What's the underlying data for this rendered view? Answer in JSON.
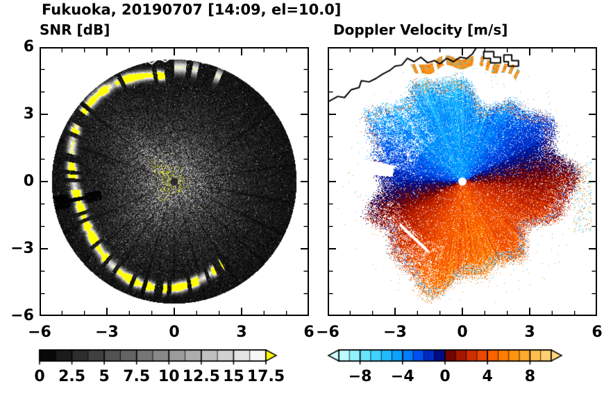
{
  "figure": {
    "title": "Fukuoka, 20190707 [14:09, el=10.0]",
    "site": "Fukuoka",
    "date": "20190707",
    "time": "14:09",
    "elevation_deg": "10.0",
    "background": "#ffffff",
    "axis_color": "#000000"
  },
  "chart_data": [
    {
      "type": "heatmap",
      "title": "SNR [dB]",
      "xlim": [
        -6,
        6
      ],
      "ylim": [
        -6,
        6
      ],
      "xticks": [
        -6,
        -3,
        0,
        3,
        6
      ],
      "xtick_labels": [
        "−6",
        "−3",
        "0",
        "3",
        "6"
      ],
      "yticks": [
        -6,
        -3,
        0,
        3,
        6
      ],
      "ytick_labels": [
        "−6",
        "−3",
        "0",
        "3",
        "6"
      ],
      "minor_tick_step": 1,
      "units": "dB",
      "description": "Circular PPI scan of signal-to-noise ratio. Disk radius about 5.45 units, brightest near the center and fading to near-black at the rim, with speckle noise, thin dark shadow spokes radiating from the center, and a bright saturated (white/yellow) coastal echo arc along the western and southern rim. White coastline drawn along the top.",
      "colorbar": {
        "min": 0,
        "max": 17.5,
        "ticks": [
          0,
          2.5,
          5,
          7.5,
          10,
          12.5,
          15,
          17.5
        ],
        "tick_labels": [
          "0",
          "2.5",
          "5",
          "7.5",
          "10",
          "12.5",
          "15",
          "17.5"
        ],
        "segment_step": 1.25,
        "colormap": "grayscale",
        "color_min": "#000000",
        "color_max": "#ffffff",
        "over_color": "#ffff00"
      },
      "field": {
        "kind": "radial-scan",
        "center": [
          0,
          0
        ],
        "scan_radius": 5.45,
        "peak_snr_center": 11,
        "radial_falloff": 1.9,
        "coastal_arc_azimuth_deg": [
          95,
          300
        ],
        "coastal_arc_radius": 4.62,
        "coastal_arc_snr": 25,
        "top_arc_azimuth_deg": [
          60,
          95
        ],
        "top_arc_radius": 5.1,
        "shadow_spokes_deg": [
          8,
          -10,
          -26,
          -42,
          -58,
          -75,
          -90,
          -106,
          -122,
          -138,
          -155,
          160,
          140,
          35
        ],
        "blocked_wedge_deg": [
          187,
          194
        ]
      },
      "overlays": {
        "coastline_color": "#ffffff",
        "center_dot_color": "#2a2a2a"
      }
    },
    {
      "type": "heatmap",
      "title": "Doppler Velocity [m/s]",
      "xlim": [
        -6,
        6
      ],
      "ylim": [
        -6,
        6
      ],
      "xticks": [
        -6,
        -3,
        0,
        3,
        6
      ],
      "xtick_labels": [
        "−6",
        "−3",
        "0",
        "3",
        "6"
      ],
      "yticks": [
        -6,
        -3,
        0,
        3,
        6
      ],
      "ytick_labels": [],
      "minor_tick_step": 1,
      "units": "m/s",
      "description": "Doppler velocity dipole: negative (blue/cyan, toward) velocities over the northern/north-western half, positive (red/orange, away) velocities over the southern/south-eastern half, ragged speckled coverage edge, a red echo arc along the northern coastline, scattered red/blue specks near the eastern rim, a thin white data-gap slash in the south-west sector, and a white dot at the scan center. Black coastline drawn along the top.",
      "colorbar": {
        "min": -10,
        "max": 10,
        "ticks": [
          -8,
          -4,
          0,
          4,
          8
        ],
        "tick_labels": [
          "−8",
          "−4",
          "0",
          "4",
          "8"
        ],
        "segment_step": 1,
        "under_arrow_color": "#d0ffff",
        "over_arrow_color": "#ffd882",
        "colormap_stops": [
          {
            "v": -10,
            "c": "#d0ffff"
          },
          {
            "v": -8,
            "c": "#7ceeff"
          },
          {
            "v": -6,
            "c": "#2cc8ff"
          },
          {
            "v": -4,
            "c": "#0094ff"
          },
          {
            "v": -2.5,
            "c": "#0050f0"
          },
          {
            "v": -1.2,
            "c": "#0020b4"
          },
          {
            "v": -0.08,
            "c": "#000068"
          },
          {
            "v": 0.08,
            "c": "#5e0000"
          },
          {
            "v": 1.2,
            "c": "#9c0e00"
          },
          {
            "v": 2.5,
            "c": "#d22f00"
          },
          {
            "v": 4,
            "c": "#fa5500"
          },
          {
            "v": 6,
            "c": "#ff8a00"
          },
          {
            "v": 8,
            "c": "#ffb43c"
          },
          {
            "v": 10,
            "c": "#ffd882"
          }
        ]
      },
      "field": {
        "kind": "doppler-dipole",
        "center": [
          0,
          0
        ],
        "coverage_radius": 4.35,
        "max_velocity_mps": 8,
        "positive_azimuth_deg": -78,
        "top_arc_azimuth_deg": [
          62,
          114
        ],
        "top_arc_radius": 5.35,
        "top_arc_velocity": 6
      },
      "overlays": {
        "coastline_color": "#000000",
        "center_dot_color": "#ffffff"
      }
    }
  ]
}
